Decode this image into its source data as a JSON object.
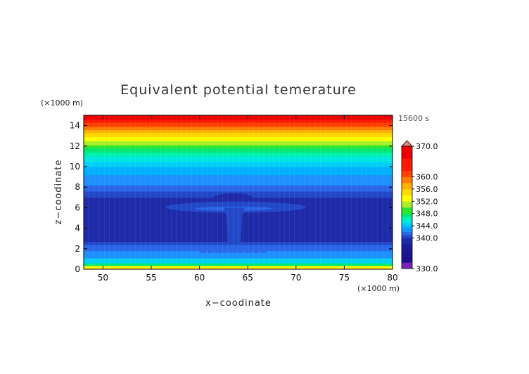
{
  "chart_data": {
    "type": "heatmap",
    "title": "Equivalent potential temerature",
    "xlabel": "x−coodinate",
    "ylabel": "z−coodinate",
    "x_unit": "(×1000 m)",
    "y_unit": "(×1000 m)",
    "time_label": "15600 s",
    "xlim": [
      48,
      80
    ],
    "ylim": [
      0,
      15
    ],
    "x_ticks": [
      50,
      55,
      60,
      65,
      70,
      75,
      80
    ],
    "y_ticks": [
      0,
      2,
      4,
      6,
      8,
      10,
      12,
      14
    ],
    "colorbar": {
      "range": [
        330,
        370
      ],
      "labels": [
        "370.0",
        "360.0",
        "356.0",
        "352.0",
        "348.0",
        "344.0",
        "340.0",
        "330.0"
      ],
      "levels": [
        {
          "value": 330,
          "color": "#7a1fb8"
        },
        {
          "value": 332,
          "color": "#1a0f8c"
        },
        {
          "value": 334,
          "color": "#1a148f"
        },
        {
          "value": 336,
          "color": "#1a1a96"
        },
        {
          "value": 338,
          "color": "#1f2aa8"
        },
        {
          "value": 340,
          "color": "#2248c8"
        },
        {
          "value": 341,
          "color": "#2a66e6"
        },
        {
          "value": 342,
          "color": "#1e90ff"
        },
        {
          "value": 343,
          "color": "#00b0ff"
        },
        {
          "value": 344,
          "color": "#00d0f5"
        },
        {
          "value": 345,
          "color": "#00e8e0"
        },
        {
          "value": 346,
          "color": "#00f0b0"
        },
        {
          "value": 347,
          "color": "#00e870"
        },
        {
          "value": 348,
          "color": "#2ee62e"
        },
        {
          "value": 350,
          "color": "#a8f028"
        },
        {
          "value": 352,
          "color": "#ffff00"
        },
        {
          "value": 354,
          "color": "#ffd800"
        },
        {
          "value": 356,
          "color": "#ffb000"
        },
        {
          "value": 358,
          "color": "#ff7a00"
        },
        {
          "value": 360,
          "color": "#ff4000"
        },
        {
          "value": 362,
          "color": "#ff1a00"
        },
        {
          "value": 366,
          "color": "#ee0000"
        },
        {
          "value": 370,
          "color": "#f08080"
        }
      ]
    },
    "bands": [
      {
        "z0": 0.0,
        "z1": 0.15,
        "value": 355
      },
      {
        "z0": 0.15,
        "z1": 0.35,
        "value": 352
      },
      {
        "z0": 0.35,
        "z1": 0.6,
        "value": 347
      },
      {
        "z0": 0.6,
        "z1": 1.1,
        "value": 344
      },
      {
        "z0": 1.1,
        "z1": 1.8,
        "value": 342
      },
      {
        "z0": 1.8,
        "z1": 2.4,
        "value": 341
      },
      {
        "z0": 2.4,
        "z1": 2.7,
        "value": 340
      },
      {
        "z0": 2.7,
        "z1": 7.0,
        "value": 338
      },
      {
        "z0": 7.0,
        "z1": 7.6,
        "value": 340
      },
      {
        "z0": 7.6,
        "z1": 8.2,
        "value": 341
      },
      {
        "z0": 8.2,
        "z1": 9.2,
        "value": 342
      },
      {
        "z0": 9.2,
        "z1": 10.0,
        "value": 343
      },
      {
        "z0": 10.0,
        "z1": 10.5,
        "value": 344
      },
      {
        "z0": 10.5,
        "z1": 11.0,
        "value": 345
      },
      {
        "z0": 11.0,
        "z1": 11.4,
        "value": 346
      },
      {
        "z0": 11.4,
        "z1": 11.8,
        "value": 347
      },
      {
        "z0": 11.8,
        "z1": 12.1,
        "value": 348
      },
      {
        "z0": 12.1,
        "z1": 12.5,
        "value": 350
      },
      {
        "z0": 12.5,
        "z1": 12.9,
        "value": 352
      },
      {
        "z0": 12.9,
        "z1": 13.3,
        "value": 354
      },
      {
        "z0": 13.3,
        "z1": 13.6,
        "value": 356
      },
      {
        "z0": 13.6,
        "z1": 13.9,
        "value": 358
      },
      {
        "z0": 13.9,
        "z1": 14.3,
        "value": 360
      },
      {
        "z0": 14.3,
        "z1": 14.6,
        "value": 362
      },
      {
        "z0": 14.6,
        "z1": 15.0,
        "value": 366
      }
    ],
    "features": [
      {
        "name": "anvil",
        "value": 340,
        "x": [
          56.5,
          71.0
        ],
        "z": [
          5.5,
          6.6
        ]
      },
      {
        "name": "anvil-core",
        "value": 341,
        "x": [
          59.5,
          67.5
        ],
        "z": [
          5.7,
          6.1
        ]
      },
      {
        "name": "updraft-column",
        "value": 340,
        "x": [
          62.8,
          64.4
        ],
        "z": [
          2.5,
          6.0
        ]
      },
      {
        "name": "cloud-top",
        "value": 338,
        "x": [
          61.5,
          65.5
        ],
        "z": [
          6.6,
          7.4
        ]
      },
      {
        "name": "low-level-plumes",
        "value": 341,
        "x": [
          60.0,
          67.0
        ],
        "z": [
          1.6,
          2.5
        ]
      }
    ]
  }
}
